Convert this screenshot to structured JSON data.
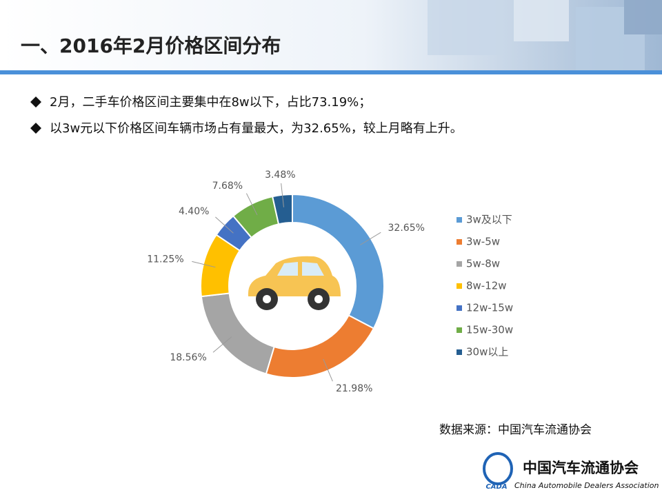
{
  "header": {
    "title": "一、2016年2月价格区间分布"
  },
  "bullets": [
    "2月，二手车价格区间主要集中在8w以下，占比73.19%；",
    "以3w元以下价格区间车辆市场占有量最大，为32.65%，较上月略有上升。"
  ],
  "chart_data": {
    "type": "donut",
    "categories": [
      "3w及以下",
      "3w-5w",
      "5w-8w",
      "8w-12w",
      "12w-15w",
      "15w-30w",
      "30w以上"
    ],
    "values": [
      32.65,
      21.98,
      18.56,
      11.25,
      4.4,
      7.68,
      3.48
    ],
    "value_labels": [
      "32.65%",
      "21.98%",
      "18.56%",
      "11.25%",
      "4.40%",
      "7.68%",
      "3.48%"
    ],
    "colors": [
      "#5b9bd5",
      "#ed7d31",
      "#a5a5a5",
      "#ffc000",
      "#4472c4",
      "#70ad47",
      "#255e91"
    ],
    "legend": "right"
  },
  "source": "数据来源：中国汽车流通协会",
  "logo": {
    "abbr": "CADA",
    "name": "中国汽车流通协会",
    "english": "China Automobile Dealers Association"
  }
}
